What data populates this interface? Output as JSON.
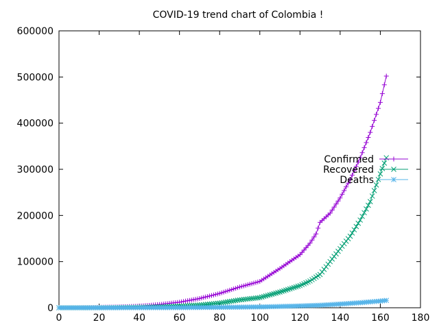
{
  "chart_data": {
    "type": "line",
    "title": "COVID-19 trend chart of Colombia !",
    "xlabel": "",
    "ylabel": "",
    "xlim": [
      0,
      180
    ],
    "ylim": [
      0,
      600000
    ],
    "xticks": [
      0,
      20,
      40,
      60,
      80,
      100,
      120,
      140,
      160,
      180
    ],
    "yticks": [
      0,
      100000,
      200000,
      300000,
      400000,
      500000,
      600000
    ],
    "grid": false,
    "legend_position": "right",
    "series": [
      {
        "name": "Confirmed",
        "color": "#9400d3",
        "marker": "plus",
        "points": [
          [
            0,
            1
          ],
          [
            10,
            100
          ],
          [
            20,
            1000
          ],
          [
            30,
            1800
          ],
          [
            40,
            3500
          ],
          [
            50,
            7000
          ],
          [
            60,
            12000
          ],
          [
            70,
            20000
          ],
          [
            80,
            31000
          ],
          [
            90,
            45000
          ],
          [
            100,
            57000
          ],
          [
            110,
            85000
          ],
          [
            120,
            115000
          ],
          [
            125,
            140000
          ],
          [
            128,
            160000
          ],
          [
            130,
            185000
          ],
          [
            135,
            205000
          ],
          [
            140,
            238000
          ],
          [
            145,
            278000
          ],
          [
            150,
            325000
          ],
          [
            155,
            380000
          ],
          [
            160,
            445000
          ],
          [
            163,
            502000
          ]
        ]
      },
      {
        "name": "Recovered",
        "color": "#009e73",
        "marker": "cross",
        "points": [
          [
            0,
            0
          ],
          [
            10,
            10
          ],
          [
            20,
            100
          ],
          [
            30,
            500
          ],
          [
            40,
            1000
          ],
          [
            50,
            2000
          ],
          [
            60,
            3500
          ],
          [
            70,
            6000
          ],
          [
            80,
            10000
          ],
          [
            90,
            17000
          ],
          [
            100,
            22000
          ],
          [
            110,
            34000
          ],
          [
            120,
            48000
          ],
          [
            125,
            58000
          ],
          [
            130,
            72000
          ],
          [
            135,
            100000
          ],
          [
            140,
            128000
          ],
          [
            145,
            155000
          ],
          [
            150,
            190000
          ],
          [
            155,
            230000
          ],
          [
            160,
            290000
          ],
          [
            163,
            325000
          ]
        ]
      },
      {
        "name": "Deaths",
        "color": "#56b4e9",
        "marker": "star",
        "points": [
          [
            0,
            0
          ],
          [
            20,
            10
          ],
          [
            40,
            100
          ],
          [
            60,
            300
          ],
          [
            80,
            900
          ],
          [
            100,
            1800
          ],
          [
            110,
            2800
          ],
          [
            120,
            4000
          ],
          [
            130,
            5500
          ],
          [
            140,
            8000
          ],
          [
            150,
            11000
          ],
          [
            160,
            14500
          ],
          [
            163,
            16000
          ]
        ]
      }
    ]
  }
}
